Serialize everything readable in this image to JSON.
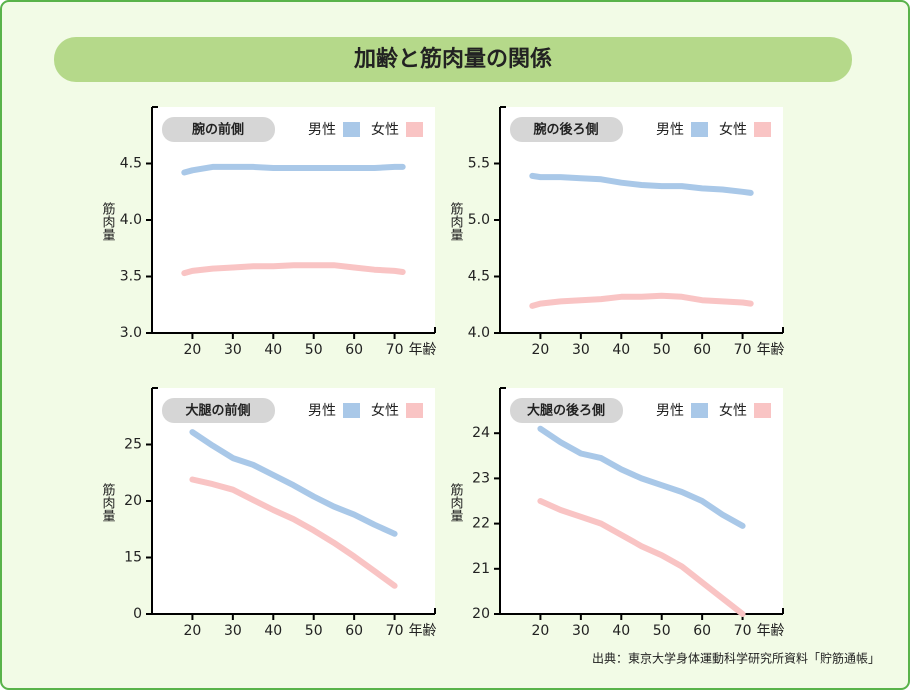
{
  "header": {
    "title": "加齢と筋肉量の関係"
  },
  "source": "出典：東京大学身体運動科学研究所資料「貯筋通帳」",
  "chart_data": [
    {
      "type": "line",
      "title": "腕の前側",
      "xlabel": "年齢",
      "ylabel": "筋肉量",
      "x": [
        18,
        20,
        25,
        30,
        35,
        40,
        45,
        50,
        55,
        60,
        65,
        70,
        72
      ],
      "xlim": [
        10,
        80
      ],
      "xticks": [
        20,
        30,
        40,
        50,
        60,
        70
      ],
      "ylim": [
        3.0,
        5.0
      ],
      "yticks": [
        {
          "value": 3,
          "label": "3.0"
        },
        3.5,
        {
          "value": 4,
          "label": "4.0"
        },
        4.5
      ],
      "series": [
        {
          "name": "男性",
          "color": "#a9c8e8",
          "values": [
            4.42,
            4.44,
            4.47,
            4.47,
            4.47,
            4.46,
            4.46,
            4.46,
            4.46,
            4.46,
            4.46,
            4.47,
            4.47
          ]
        },
        {
          "name": "女性",
          "color": "#f9c4c4",
          "values": [
            3.53,
            3.55,
            3.57,
            3.58,
            3.59,
            3.59,
            3.6,
            3.6,
            3.6,
            3.58,
            3.56,
            3.55,
            3.54
          ]
        }
      ]
    },
    {
      "type": "line",
      "title": "腕の後ろ側",
      "xlabel": "年齢",
      "ylabel": "筋肉量",
      "x": [
        18,
        20,
        25,
        30,
        35,
        40,
        45,
        50,
        55,
        60,
        65,
        70,
        72
      ],
      "xlim": [
        10,
        80
      ],
      "xticks": [
        20,
        30,
        40,
        50,
        60,
        70
      ],
      "ylim": [
        4.0,
        6.0
      ],
      "yticks": [
        {
          "value": 4,
          "label": "4.0"
        },
        4.5,
        {
          "value": 5,
          "label": "5.0"
        },
        5.5
      ],
      "series": [
        {
          "name": "男性",
          "color": "#a9c8e8",
          "values": [
            5.39,
            5.38,
            5.38,
            5.37,
            5.36,
            5.33,
            5.31,
            5.3,
            5.3,
            5.28,
            5.27,
            5.25,
            5.24
          ]
        },
        {
          "name": "女性",
          "color": "#f9c4c4",
          "values": [
            4.24,
            4.26,
            4.28,
            4.29,
            4.3,
            4.32,
            4.32,
            4.33,
            4.32,
            4.29,
            4.28,
            4.27,
            4.26
          ]
        }
      ]
    },
    {
      "type": "line",
      "title": "大腿の前側",
      "xlabel": "年齢",
      "ylabel": "筋肉量",
      "x": [
        20,
        25,
        30,
        35,
        40,
        45,
        50,
        55,
        60,
        65,
        70
      ],
      "xlim": [
        10,
        80
      ],
      "xticks": [
        20,
        30,
        40,
        50,
        60,
        70
      ],
      "ylim": [
        10,
        30
      ],
      "yticks": [
        {
          "value": 10,
          "label": "0"
        },
        15,
        20,
        25
      ],
      "series": [
        {
          "name": "男性",
          "color": "#a9c8e8",
          "values": [
            26.1,
            24.9,
            23.8,
            23.2,
            22.3,
            21.4,
            20.4,
            19.5,
            18.8,
            17.9,
            17.1
          ]
        },
        {
          "name": "女性",
          "color": "#f9c4c4",
          "values": [
            21.9,
            21.5,
            21.0,
            20.1,
            19.2,
            18.4,
            17.4,
            16.3,
            15.1,
            13.8,
            12.5
          ]
        }
      ]
    },
    {
      "type": "line",
      "title": "大腿の後ろ側",
      "xlabel": "年齢",
      "ylabel": "筋肉量",
      "x": [
        20,
        25,
        30,
        35,
        40,
        45,
        50,
        55,
        60,
        65,
        70
      ],
      "xlim": [
        10,
        80
      ],
      "xticks": [
        20,
        30,
        40,
        50,
        60,
        70
      ],
      "ylim": [
        20,
        25
      ],
      "yticks": [
        20,
        21,
        22,
        23,
        24
      ],
      "series": [
        {
          "name": "男性",
          "color": "#a9c8e8",
          "values": [
            24.1,
            23.8,
            23.55,
            23.45,
            23.2,
            23.0,
            22.85,
            22.7,
            22.5,
            22.2,
            21.95
          ]
        },
        {
          "name": "女性",
          "color": "#f9c4c4",
          "values": [
            22.5,
            22.3,
            22.15,
            22.0,
            21.75,
            21.5,
            21.3,
            21.05,
            20.7,
            20.35,
            20.0
          ]
        }
      ]
    }
  ]
}
